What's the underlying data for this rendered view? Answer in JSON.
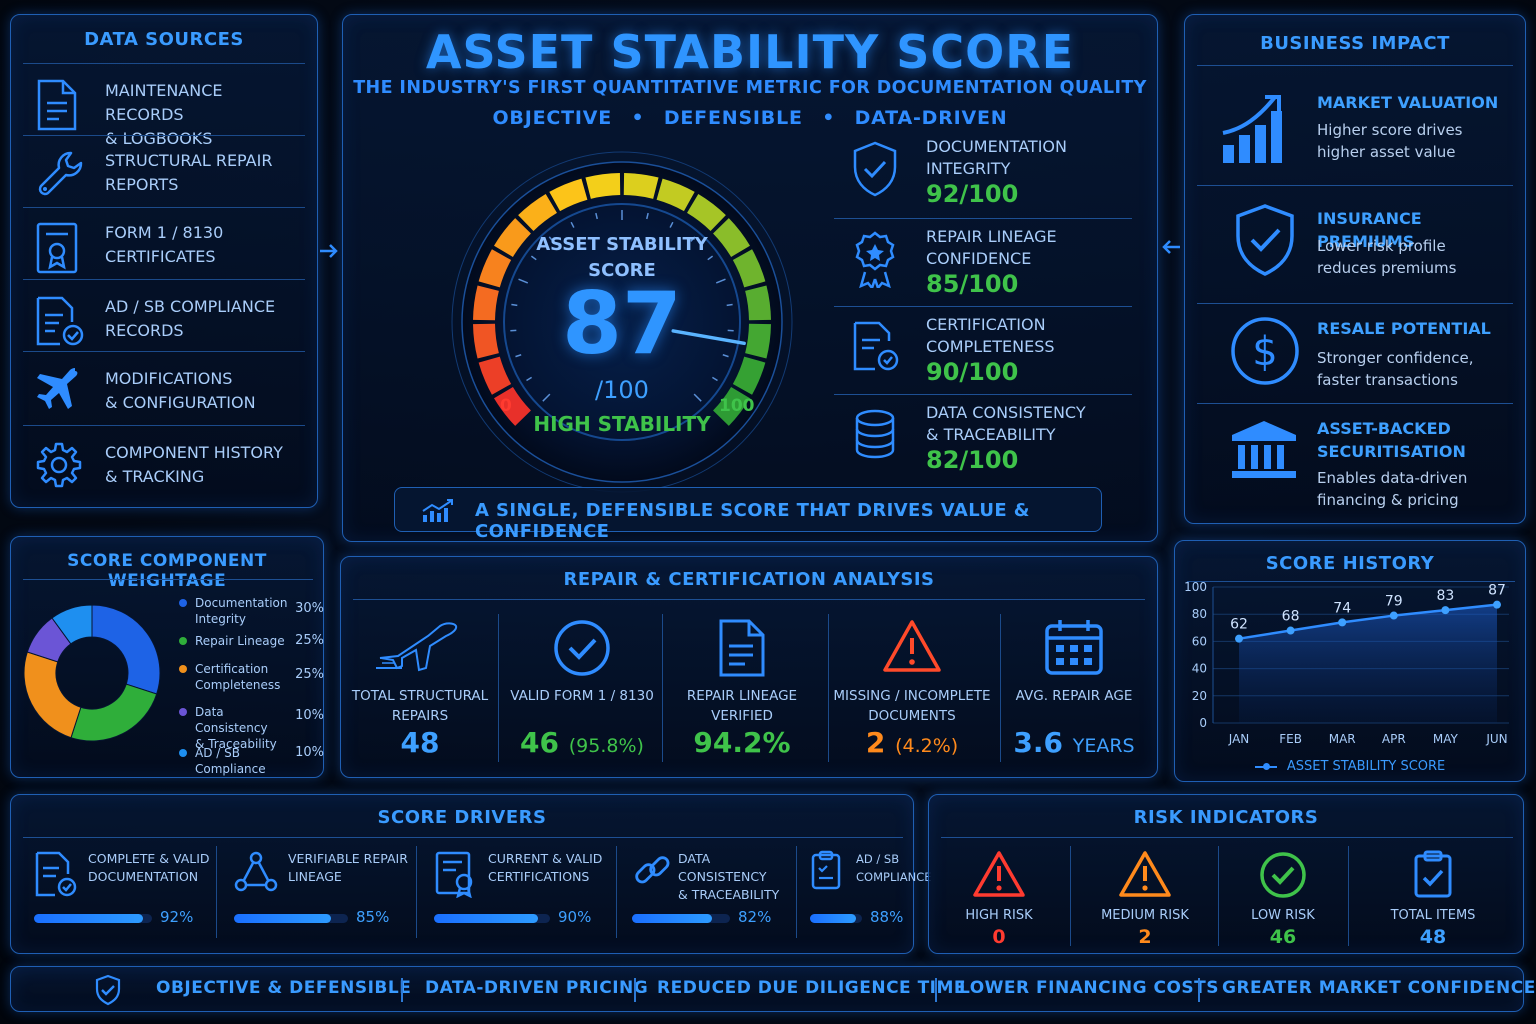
{
  "header": {
    "title": "ASSET STABILITY SCORE",
    "subtitle": "THE INDUSTRY'S FIRST QUANTITATIVE METRIC FOR DOCUMENTATION QUALITY",
    "tags": [
      "OBJECTIVE",
      "DEFENSIBLE",
      "DATA-DRIVEN"
    ],
    "separator": "•"
  },
  "gauge": {
    "label_line1": "ASSET STABILITY",
    "label_line2": "SCORE",
    "value": "87",
    "max_label": "/100",
    "status": "HIGH STABILITY",
    "min_tick": "0",
    "max_tick": "100",
    "score": 87,
    "max": 100
  },
  "metrics": [
    {
      "line1": "DOCUMENTATION",
      "line2": "INTEGRITY",
      "value": "92/100",
      "icon": "shield-check-icon"
    },
    {
      "line1": "REPAIR LINEAGE",
      "line2": "CONFIDENCE",
      "value": "85/100",
      "icon": "award-badge-icon"
    },
    {
      "line1": "CERTIFICATION",
      "line2": "COMPLETENESS",
      "value": "90/100",
      "icon": "certificate-doc-icon"
    },
    {
      "line1": "DATA CONSISTENCY",
      "line2": "& TRACEABILITY",
      "value": "82/100",
      "icon": "database-icon"
    }
  ],
  "banner": "A SINGLE, DEFENSIBLE SCORE THAT DRIVES VALUE & CONFIDENCE",
  "data_sources": {
    "title": "DATA SOURCES",
    "items": [
      {
        "line1": "MAINTENANCE RECORDS",
        "line2": "& LOGBOOKS",
        "icon": "document-icon"
      },
      {
        "line1": "STRUCTURAL REPAIR",
        "line2": "REPORTS",
        "icon": "wrench-icon"
      },
      {
        "line1": "FORM 1 / 8130",
        "line2": "CERTIFICATES",
        "icon": "certificate-icon"
      },
      {
        "line1": "AD / SB COMPLIANCE",
        "line2": "RECORDS",
        "icon": "compliance-doc-icon"
      },
      {
        "line1": "MODIFICATIONS",
        "line2": "& CONFIGURATION",
        "icon": "airplane-icon"
      },
      {
        "line1": "COMPONENT HISTORY",
        "line2": "& TRACKING",
        "icon": "gear-icon"
      }
    ]
  },
  "business_impact": {
    "title": "BUSINESS IMPACT",
    "items": [
      {
        "title1": "MARKET VALUATION",
        "title2": "",
        "desc1": "Higher score drives",
        "desc2": "higher asset value",
        "icon": "growth-chart-icon"
      },
      {
        "title1": "INSURANCE PREMIUMS",
        "title2": "",
        "desc1": "Lower risk profile",
        "desc2": "reduces premiums",
        "icon": "shield-check-icon"
      },
      {
        "title1": "RESALE POTENTIAL",
        "title2": "",
        "desc1": "Stronger confidence,",
        "desc2": "faster transactions",
        "icon": "dollar-icon"
      },
      {
        "title1": "ASSET-BACKED",
        "title2": "SECURITISATION",
        "desc1": "Enables data-driven",
        "desc2": "financing & pricing",
        "icon": "bank-icon"
      }
    ]
  },
  "weightage": {
    "title": "SCORE COMPONENT WEIGHTAGE",
    "items": [
      {
        "line1": "Documentation",
        "line2": "Integrity",
        "pct": "30%",
        "value": 30,
        "color": "#1e63e6"
      },
      {
        "line1": "Repair Lineage",
        "line2": "",
        "pct": "25%",
        "value": 25,
        "color": "#2fae3a"
      },
      {
        "line1": "Certification",
        "line2": "Completeness",
        "pct": "25%",
        "value": 25,
        "color": "#f0901c"
      },
      {
        "line1": "Data Consistency",
        "line2": "& Traceability",
        "pct": "10%",
        "value": 10,
        "color": "#6b55d6"
      },
      {
        "line1": "AD / SB Compliance",
        "line2": "",
        "pct": "10%",
        "value": 10,
        "color": "#1e8ff0"
      }
    ]
  },
  "analysis": {
    "title": "REPAIR & CERTIFICATION ANALYSIS",
    "items": [
      {
        "line1": "TOTAL STRUCTURAL",
        "line2": "REPAIRS",
        "value": "48",
        "extra": "",
        "color": "#3ea0ff",
        "icon": "airplane-outline-icon"
      },
      {
        "line1": "VALID FORM 1 / 8130",
        "line2": "",
        "value": "46",
        "extra": "(95.8%)",
        "color": "#3fc34a",
        "icon": "check-circle-icon"
      },
      {
        "line1": "REPAIR LINEAGE",
        "line2": "VERIFIED",
        "value": "94.2%",
        "extra": "",
        "color": "#3fc34a",
        "icon": "document-icon"
      },
      {
        "line1": "MISSING / INCOMPLETE",
        "line2": "DOCUMENTS",
        "value": "2",
        "extra": "(4.2%)",
        "color": "#ff8a1c",
        "icon": "warning-icon"
      },
      {
        "line1": "AVG. REPAIR AGE",
        "line2": "",
        "value": "3.6",
        "extra": "YEARS",
        "color": "#3ea0ff",
        "icon": "calendar-icon"
      }
    ]
  },
  "history": {
    "title": "SCORE HISTORY",
    "legend": "ASSET STABILITY SCORE"
  },
  "chart_data": {
    "type": "area",
    "title": "SCORE HISTORY",
    "categories": [
      "JAN",
      "FEB",
      "MAR",
      "APR",
      "MAY",
      "JUN"
    ],
    "series": [
      {
        "name": "ASSET STABILITY SCORE",
        "values": [
          62,
          68,
          74,
          79,
          83,
          87
        ]
      }
    ],
    "y_ticks": [
      "0",
      "20",
      "40",
      "60",
      "80",
      "100"
    ],
    "ylim": [
      0,
      100
    ],
    "grid": true,
    "legend_position": "bottom"
  },
  "drivers": {
    "title": "SCORE DRIVERS",
    "items": [
      {
        "line1": "COMPLETE & VALID",
        "line2": "DOCUMENTATION",
        "pct": "92%",
        "value": 92,
        "icon": "document-check-icon"
      },
      {
        "line1": "VERIFIABLE REPAIR",
        "line2": "LINEAGE",
        "pct": "85%",
        "value": 85,
        "icon": "network-icon"
      },
      {
        "line1": "CURRENT & VALID",
        "line2": "CERTIFICATIONS",
        "pct": "90%",
        "value": 90,
        "icon": "certificate-icon"
      },
      {
        "line1": "DATA CONSISTENCY",
        "line2": "& TRACEABILITY",
        "pct": "82%",
        "value": 82,
        "icon": "link-icon"
      },
      {
        "line1": "AD / SB",
        "line2": "COMPLIANCE",
        "pct": "88%",
        "value": 88,
        "icon": "clipboard-icon"
      }
    ]
  },
  "risk": {
    "title": "RISK INDICATORS",
    "items": [
      {
        "label": "HIGH RISK",
        "value": "0",
        "color": "#ff3b30",
        "icon": "warning-red-icon"
      },
      {
        "label": "MEDIUM RISK",
        "value": "2",
        "color": "#ff8a1c",
        "icon": "warning-orange-icon"
      },
      {
        "label": "LOW RISK",
        "value": "46",
        "color": "#3fc34a",
        "icon": "check-circle-green-icon"
      },
      {
        "label": "TOTAL ITEMS",
        "value": "48",
        "color": "#3ea0ff",
        "icon": "clipboard-check-icon"
      }
    ]
  },
  "footer": [
    "OBJECTIVE & DEFENSIBLE",
    "DATA-DRIVEN PRICING",
    "REDUCED DUE DILIGENCE TIME",
    "LOWER FINANCING COSTS",
    "GREATER MARKET CONFIDENCE"
  ]
}
